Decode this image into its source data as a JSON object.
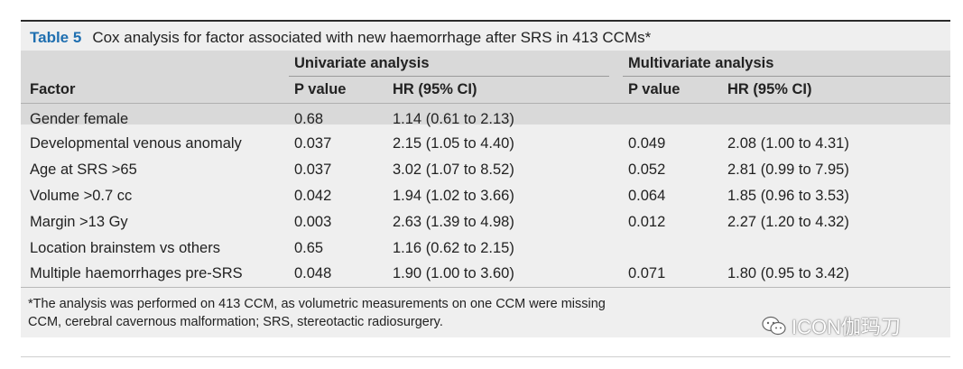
{
  "caption": {
    "label": "Table 5",
    "text": "Cox analysis for factor associated with new haemorrhage after SRS in 413 CCMs*"
  },
  "header": {
    "group_univariate": "Univariate analysis",
    "group_multivariate": "Multivariate analysis",
    "factor": "Factor",
    "uni_p": "P value",
    "uni_hr": "HR (95% CI)",
    "multi_p": "P value",
    "multi_hr": "HR (95% CI)"
  },
  "rows": [
    {
      "factor": "Gender female",
      "uni_p": "0.68",
      "uni_hr": "1.14 (0.61 to 2.13)",
      "multi_p": "",
      "multi_hr": ""
    },
    {
      "factor": "Developmental venous anomaly",
      "uni_p": "0.037",
      "uni_hr": "2.15 (1.05 to 4.40)",
      "multi_p": "0.049",
      "multi_hr": "2.08 (1.00 to 4.31)"
    },
    {
      "factor": "Age at SRS >65",
      "uni_p": "0.037",
      "uni_hr": "3.02 (1.07 to 8.52)",
      "multi_p": "0.052",
      "multi_hr": "2.81 (0.99 to 7.95)"
    },
    {
      "factor": "Volume >0.7 cc",
      "uni_p": "0.042",
      "uni_hr": "1.94 (1.02 to 3.66)",
      "multi_p": "0.064",
      "multi_hr": "1.85 (0.96 to 3.53)"
    },
    {
      "factor": "Margin >13 Gy",
      "uni_p": "0.003",
      "uni_hr": "2.63 (1.39 to 4.98)",
      "multi_p": "0.012",
      "multi_hr": "2.27 (1.20 to 4.32)"
    },
    {
      "factor": "Location brainstem vs others",
      "uni_p": "0.65",
      "uni_hr": "1.16 (0.62 to 2.15)",
      "multi_p": "",
      "multi_hr": ""
    },
    {
      "factor": "Multiple haemorrhages pre-SRS",
      "uni_p": "0.048",
      "uni_hr": "1.90 (1.00 to 3.60)",
      "multi_p": "0.071",
      "multi_hr": "1.80 (0.95 to 3.42)"
    }
  ],
  "footnotes": [
    "*The analysis was performed on 413 CCM, as volumetric measurements on one CCM were missing",
    "CCM, cerebral cavernous malformation; SRS, stereotactic radiosurgery."
  ],
  "watermark": {
    "text": "ICON伽玛刀",
    "icon": "wechat-icon"
  },
  "colors": {
    "caption_label": "#1f6fb0",
    "table_background": "#efefef",
    "header_background": "#d9d9d9"
  }
}
